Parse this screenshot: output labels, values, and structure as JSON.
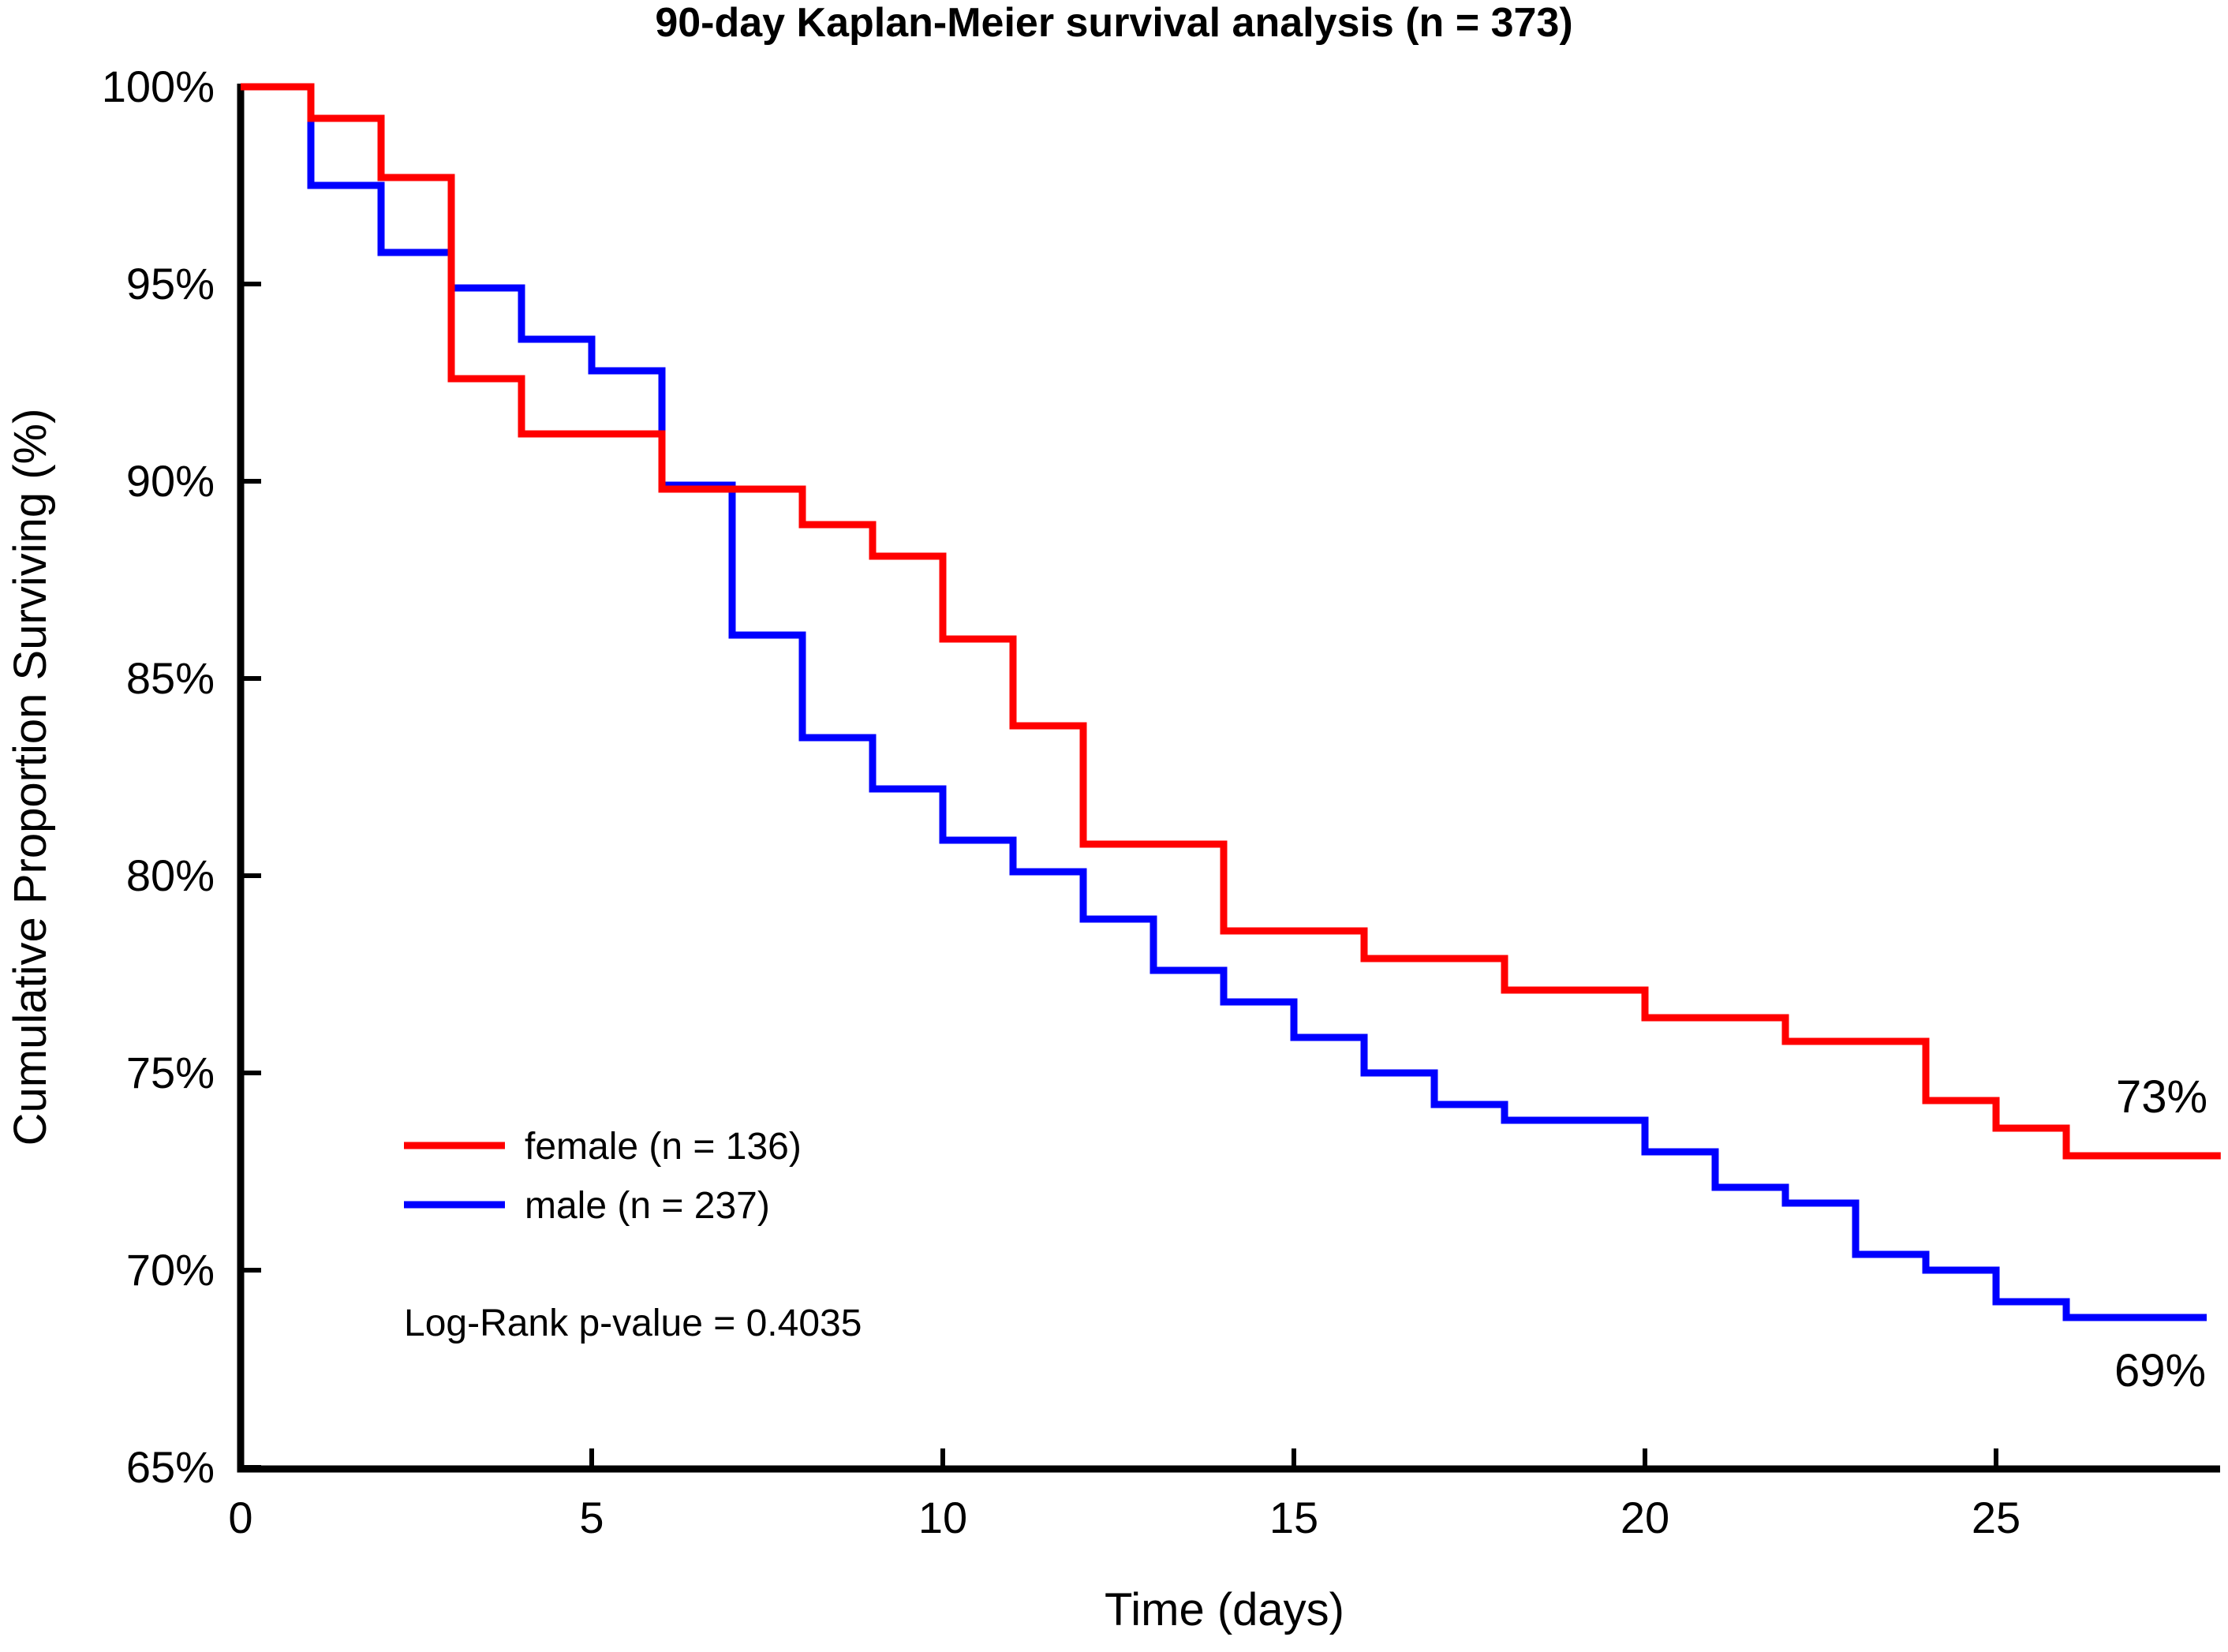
{
  "title": "90-day Kaplan-Meier survival analysis (n = 373)",
  "stats": {
    "log_rank_text": "Log-Rank p-value = 0.4035",
    "p_value": 0.4035
  },
  "axes": {
    "x": {
      "label": "Time (days)",
      "tick_values": [
        0,
        5,
        10,
        15,
        20,
        25
      ],
      "tick_labels": [
        "0",
        "5",
        "10",
        "15",
        "20",
        "25"
      ],
      "range": [
        0,
        28.3
      ]
    },
    "y": {
      "label": "Cumulative Proportion Surviving (%)",
      "tick_values": [
        100,
        95,
        90,
        85,
        80,
        75,
        70,
        65
      ],
      "tick_labels": [
        "100%",
        "95%",
        "90%",
        "85%",
        "80%",
        "75%",
        "70%",
        "65%"
      ],
      "range": [
        65,
        100
      ]
    }
  },
  "legend": {
    "items": [
      {
        "label": "female (n = 136)",
        "color": "#ff0000"
      },
      {
        "label": "male (n = 237)",
        "color": "#0000ff"
      }
    ]
  },
  "chart_data": {
    "type": "line",
    "subtype": "kaplan-meier-step",
    "step": "post",
    "title": "90-day Kaplan-Meier survival analysis (n = 373)",
    "xlabel": "Time (days)",
    "ylabel": "Cumulative Proportion Surviving (%)",
    "xlim": [
      0,
      28.3
    ],
    "ylim": [
      65,
      100
    ],
    "grid": false,
    "legend_position": "lower-left-inside",
    "total_n": 373,
    "series": [
      {
        "name": "female (n = 136)",
        "n": 136,
        "color": "#ff0000",
        "end_label": "73%",
        "end_day": 28.2,
        "points": [
          [
            0,
            100
          ],
          [
            1,
            99.2
          ],
          [
            2,
            97.7
          ],
          [
            3,
            92.6
          ],
          [
            4,
            91.2
          ],
          [
            6,
            89.8
          ],
          [
            8,
            88.9
          ],
          [
            9,
            88.1
          ],
          [
            10,
            86.0
          ],
          [
            11,
            83.8
          ],
          [
            12,
            80.8
          ],
          [
            14,
            78.6
          ],
          [
            16,
            77.9
          ],
          [
            18,
            77.1
          ],
          [
            20,
            76.4
          ],
          [
            22,
            75.8
          ],
          [
            24,
            74.3
          ],
          [
            25,
            73.6
          ],
          [
            26,
            72.9
          ]
        ]
      },
      {
        "name": "male (n = 237)",
        "n": 237,
        "color": "#0000ff",
        "end_label": "69%",
        "end_day": 28.0,
        "points": [
          [
            0,
            100
          ],
          [
            1,
            97.5
          ],
          [
            2,
            95.8
          ],
          [
            3,
            94.9
          ],
          [
            4,
            93.6
          ],
          [
            5,
            92.8
          ],
          [
            6,
            89.9
          ],
          [
            7,
            86.1
          ],
          [
            8,
            83.5
          ],
          [
            9,
            82.2
          ],
          [
            10,
            80.9
          ],
          [
            11,
            80.1
          ],
          [
            12,
            78.9
          ],
          [
            13,
            77.6
          ],
          [
            14,
            76.8
          ],
          [
            15,
            75.9
          ],
          [
            16,
            75.0
          ],
          [
            17,
            74.2
          ],
          [
            18,
            73.8
          ],
          [
            20,
            73.0
          ],
          [
            21,
            72.1
          ],
          [
            22,
            71.7
          ],
          [
            23,
            70.4
          ],
          [
            24,
            70.0
          ],
          [
            25,
            69.2
          ],
          [
            26,
            68.8
          ]
        ]
      }
    ]
  }
}
